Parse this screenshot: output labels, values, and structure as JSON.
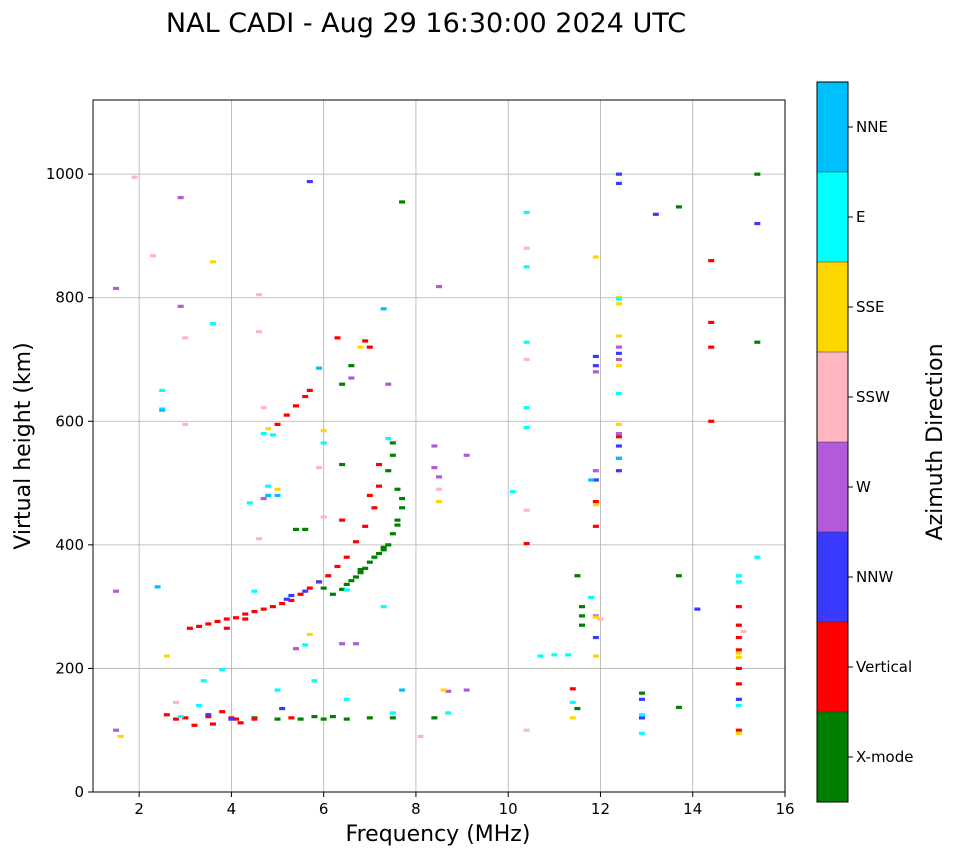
{
  "chart_data": {
    "type": "scatter",
    "title": "NAL CADI - Aug 29 16:30:00 2024 UTC",
    "xlabel": "Frequency (MHz)",
    "ylabel": "Virtual height (km)",
    "xlim": [
      1,
      16
    ],
    "ylim": [
      0,
      1120
    ],
    "xticks": [
      2,
      4,
      6,
      8,
      10,
      12,
      14,
      16
    ],
    "yticks": [
      0,
      200,
      400,
      600,
      800,
      1000
    ],
    "grid": true,
    "colorbar": {
      "label": "Azimuth Direction",
      "categories": [
        "X-mode",
        "Vertical",
        "NNW",
        "W",
        "SSW",
        "SSE",
        "E",
        "NNE"
      ],
      "colors": [
        "#008000",
        "#ff0000",
        "#3a3aff",
        "#b45ad8",
        "#ffb6c1",
        "#ffd700",
        "#00ffff",
        "#00bfff"
      ]
    },
    "series": [
      {
        "name": "X-mode",
        "points": [
          [
            6.2,
            320
          ],
          [
            6.4,
            328
          ],
          [
            6.5,
            336
          ],
          [
            6.6,
            342
          ],
          [
            6.7,
            348
          ],
          [
            6.8,
            355
          ],
          [
            6.9,
            362
          ],
          [
            7.0,
            372
          ],
          [
            7.1,
            380
          ],
          [
            7.2,
            386
          ],
          [
            7.3,
            392
          ],
          [
            7.4,
            400
          ],
          [
            7.5,
            418
          ],
          [
            7.6,
            440
          ],
          [
            7.7,
            460
          ],
          [
            6.8,
            360
          ],
          [
            7.3,
            396
          ],
          [
            7.6,
            432
          ],
          [
            7.7,
            475
          ],
          [
            7.6,
            490
          ],
          [
            7.4,
            520
          ],
          [
            7.5,
            545
          ],
          [
            7.5,
            565
          ],
          [
            6.0,
            330
          ],
          [
            5.4,
            425
          ],
          [
            5.6,
            425
          ],
          [
            6.4,
            530
          ],
          [
            6.4,
            660
          ],
          [
            6.6,
            690
          ],
          [
            7.7,
            955
          ],
          [
            4.5,
            120
          ],
          [
            5.0,
            118
          ],
          [
            5.5,
            118
          ],
          [
            6.0,
            118
          ],
          [
            6.5,
            118
          ],
          [
            7.0,
            120
          ],
          [
            7.5,
            120
          ],
          [
            5.8,
            122
          ],
          [
            6.2,
            122
          ],
          [
            8.4,
            120
          ],
          [
            11.5,
            350
          ],
          [
            11.6,
            300
          ],
          [
            11.6,
            285
          ],
          [
            11.6,
            270
          ],
          [
            11.5,
            135
          ],
          [
            12.9,
            160
          ],
          [
            13.7,
            350
          ],
          [
            13.7,
            137
          ],
          [
            13.7,
            947
          ],
          [
            15.4,
            728
          ],
          [
            15.4,
            1000
          ]
        ]
      },
      {
        "name": "Vertical",
        "points": [
          [
            3.1,
            265
          ],
          [
            3.3,
            268
          ],
          [
            3.5,
            272
          ],
          [
            3.7,
            276
          ],
          [
            3.9,
            280
          ],
          [
            4.1,
            282
          ],
          [
            4.3,
            288
          ],
          [
            4.5,
            292
          ],
          [
            4.7,
            296
          ],
          [
            4.9,
            300
          ],
          [
            5.1,
            305
          ],
          [
            5.3,
            310
          ],
          [
            5.5,
            320
          ],
          [
            5.7,
            330
          ],
          [
            5.9,
            340
          ],
          [
            6.1,
            350
          ],
          [
            6.3,
            365
          ],
          [
            6.5,
            380
          ],
          [
            6.7,
            405
          ],
          [
            6.9,
            430
          ],
          [
            7.1,
            460
          ],
          [
            7.2,
            495
          ],
          [
            5.0,
            595
          ],
          [
            5.2,
            610
          ],
          [
            5.4,
            625
          ],
          [
            5.6,
            640
          ],
          [
            5.7,
            650
          ],
          [
            6.3,
            735
          ],
          [
            6.9,
            730
          ],
          [
            7.0,
            720
          ],
          [
            4.3,
            280
          ],
          [
            3.9,
            265
          ],
          [
            6.4,
            440
          ],
          [
            7.0,
            480
          ],
          [
            7.2,
            530
          ],
          [
            3.0,
            120
          ],
          [
            3.5,
            122
          ],
          [
            4.0,
            120
          ],
          [
            4.5,
            118
          ],
          [
            3.2,
            108
          ],
          [
            3.6,
            110
          ],
          [
            4.2,
            112
          ],
          [
            2.6,
            125
          ],
          [
            2.8,
            118
          ],
          [
            3.8,
            130
          ],
          [
            4.1,
            118
          ],
          [
            5.3,
            120
          ],
          [
            10.4,
            402
          ],
          [
            11.9,
            470
          ],
          [
            11.9,
            430
          ],
          [
            11.4,
            167
          ],
          [
            14.4,
            860
          ],
          [
            14.4,
            760
          ],
          [
            14.4,
            720
          ],
          [
            14.4,
            600
          ],
          [
            15.0,
            300
          ],
          [
            15.0,
            270
          ],
          [
            15.0,
            250
          ],
          [
            15.0,
            230
          ],
          [
            15.0,
            200
          ],
          [
            15.0,
            175
          ],
          [
            15.0,
            100
          ],
          [
            12.4,
            575
          ]
        ]
      },
      {
        "name": "NNW",
        "points": [
          [
            12.4,
            1000
          ],
          [
            12.4,
            985
          ],
          [
            12.4,
            710
          ],
          [
            12.4,
            560
          ],
          [
            12.4,
            540
          ],
          [
            12.4,
            520
          ],
          [
            11.9,
            705
          ],
          [
            11.9,
            690
          ],
          [
            11.9,
            505
          ],
          [
            11.9,
            250
          ],
          [
            12.9,
            150
          ],
          [
            12.9,
            120
          ],
          [
            14.1,
            296
          ],
          [
            15.4,
            920
          ],
          [
            13.2,
            935
          ],
          [
            5.2,
            312
          ],
          [
            5.3,
            318
          ],
          [
            5.6,
            325
          ],
          [
            5.9,
            340
          ],
          [
            5.7,
            988
          ],
          [
            3.5,
            125
          ],
          [
            4.0,
            118
          ],
          [
            5.1,
            135
          ],
          [
            15.0,
            150
          ]
        ]
      },
      {
        "name": "W",
        "points": [
          [
            1.5,
            815
          ],
          [
            1.5,
            325
          ],
          [
            1.5,
            100
          ],
          [
            8.5,
            818
          ],
          [
            8.4,
            560
          ],
          [
            8.4,
            525
          ],
          [
            8.5,
            510
          ],
          [
            9.1,
            545
          ],
          [
            9.1,
            165
          ],
          [
            8.7,
            163
          ],
          [
            12.4,
            720
          ],
          [
            12.4,
            700
          ],
          [
            12.4,
            580
          ],
          [
            11.9,
            680
          ],
          [
            11.9,
            520
          ],
          [
            11.9,
            285
          ],
          [
            6.4,
            240
          ],
          [
            6.7,
            240
          ],
          [
            4.7,
            475
          ],
          [
            5.4,
            232
          ],
          [
            2.9,
            962
          ],
          [
            2.9,
            786
          ],
          [
            7.4,
            660
          ],
          [
            6.6,
            670
          ]
        ]
      },
      {
        "name": "SSW",
        "points": [
          [
            2.3,
            868
          ],
          [
            3.0,
            735
          ],
          [
            4.6,
            805
          ],
          [
            4.6,
            745
          ],
          [
            4.7,
            622
          ],
          [
            5.9,
            525
          ],
          [
            6.0,
            445
          ],
          [
            10.4,
            880
          ],
          [
            10.4,
            700
          ],
          [
            10.4,
            456
          ],
          [
            10.4,
            100
          ],
          [
            8.1,
            90
          ],
          [
            3.0,
            595
          ],
          [
            2.8,
            145
          ],
          [
            1.9,
            995
          ],
          [
            8.5,
            490
          ],
          [
            12.0,
            280
          ],
          [
            15.1,
            260
          ],
          [
            4.6,
            410
          ]
        ]
      },
      {
        "name": "SSE",
        "points": [
          [
            3.6,
            858
          ],
          [
            11.9,
            866
          ],
          [
            12.4,
            800
          ],
          [
            12.4,
            790
          ],
          [
            12.4,
            738
          ],
          [
            12.4,
            690
          ],
          [
            12.4,
            595
          ],
          [
            8.5,
            470
          ],
          [
            8.6,
            165
          ],
          [
            11.9,
            465
          ],
          [
            11.9,
            283
          ],
          [
            11.9,
            220
          ],
          [
            11.4,
            120
          ],
          [
            15.0,
            225
          ],
          [
            15.0,
            218
          ],
          [
            15.0,
            95
          ],
          [
            4.8,
            588
          ],
          [
            5.0,
            490
          ],
          [
            5.7,
            255
          ],
          [
            2.6,
            220
          ],
          [
            1.6,
            90
          ],
          [
            6.0,
            585
          ],
          [
            6.8,
            720
          ]
        ]
      },
      {
        "name": "E",
        "points": [
          [
            10.4,
            938
          ],
          [
            10.4,
            850
          ],
          [
            10.4,
            728
          ],
          [
            10.4,
            622
          ],
          [
            10.4,
            590
          ],
          [
            10.1,
            486
          ],
          [
            10.7,
            220
          ],
          [
            11.0,
            222
          ],
          [
            11.3,
            222
          ],
          [
            12.4,
            645
          ],
          [
            12.4,
            798
          ],
          [
            11.4,
            145
          ],
          [
            11.8,
            315
          ],
          [
            12.9,
            125
          ],
          [
            12.9,
            95
          ],
          [
            15.0,
            350
          ],
          [
            15.0,
            340
          ],
          [
            15.4,
            380
          ],
          [
            15.0,
            140
          ],
          [
            2.5,
            650
          ],
          [
            2.5,
            620
          ],
          [
            3.6,
            758
          ],
          [
            4.4,
            468
          ],
          [
            4.7,
            580
          ],
          [
            4.8,
            495
          ],
          [
            6.0,
            565
          ],
          [
            7.4,
            572
          ],
          [
            7.3,
            300
          ],
          [
            6.5,
            327
          ],
          [
            4.5,
            325
          ],
          [
            3.8,
            198
          ],
          [
            3.4,
            180
          ],
          [
            5.8,
            180
          ],
          [
            5.0,
            165
          ],
          [
            6.5,
            150
          ],
          [
            7.5,
            128
          ],
          [
            3.3,
            140
          ],
          [
            2.9,
            122
          ],
          [
            5.6,
            238
          ],
          [
            4.9,
            578
          ],
          [
            8.7,
            128
          ]
        ]
      },
      {
        "name": "NNE",
        "points": [
          [
            2.5,
            618
          ],
          [
            5.9,
            686
          ],
          [
            7.3,
            782
          ],
          [
            2.4,
            332
          ],
          [
            4.8,
            480
          ],
          [
            5.0,
            480
          ],
          [
            7.7,
            165
          ],
          [
            11.8,
            505
          ],
          [
            12.4,
            540
          ]
        ]
      }
    ]
  }
}
